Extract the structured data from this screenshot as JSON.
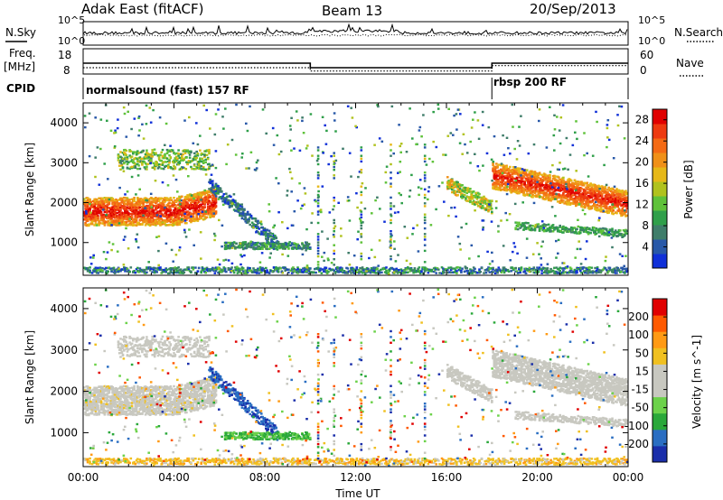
{
  "header": {
    "title_left": "Adak East (fitACF)",
    "title_center": "Beam 13",
    "title_right": "20/Sep/2013"
  },
  "labels": {
    "nsky": "N.Sky",
    "nsearch": "N.Search",
    "freq_line1": "Freq.",
    "freq_line2": "[MHz]",
    "nave": "Nave",
    "cpid": "CPID"
  },
  "cpid_programs": [
    {
      "name": "normalsound (fast) 157 RF",
      "start_ut": 0.0
    },
    {
      "name": "rbsp 200 RF",
      "start_ut": 18.0
    }
  ],
  "colors": {
    "power": [
      "#1030d8",
      "#2858a8",
      "#3f7d6a",
      "#2f9f4a",
      "#5fc23a",
      "#b0c21e",
      "#e6b818",
      "#f09018",
      "#f46a14",
      "#ee3a10",
      "#e00000"
    ],
    "velocity": [
      "#e00000",
      "#ff5a00",
      "#ff9a14",
      "#f0c020",
      "#c8c8c0",
      "#c8c8c0",
      "#6cd24a",
      "#2aa83a",
      "#2a6ec2",
      "#1a2eaa"
    ],
    "plot_frame": "#000000"
  },
  "chart_data": [
    {
      "type": "line",
      "title": "",
      "series": [
        {
          "name": "N.Sky"
        },
        {
          "name": "N.Search"
        }
      ],
      "ylim_log": [
        0,
        5
      ],
      "ytick_labels": [
        "10^0",
        "10^5"
      ],
      "right_tick_labels": [
        "10^0",
        "10^5"
      ]
    },
    {
      "type": "line",
      "series": [
        {
          "name": "Freq.",
          "x": [
            0,
            10,
            10,
            18,
            18,
            24
          ],
          "y": [
            12.3,
            12.3,
            10.5,
            10.5,
            12.3,
            12.3
          ]
        },
        {
          "name": "Nave",
          "x": [
            0,
            10,
            10,
            18,
            18,
            24
          ],
          "y": [
            15,
            15,
            7,
            7,
            20,
            20
          ]
        }
      ],
      "ylim_left": [
        8,
        18
      ],
      "ylim_right": [
        0,
        60
      ],
      "ytick_labels": [
        "8",
        "18"
      ],
      "right_tick_labels": [
        "0",
        "60"
      ]
    },
    {
      "type": "heatmap",
      "ylabel": "Slant Range [km]",
      "xlim": [
        "00:00",
        "24:00"
      ],
      "ylim": [
        180,
        4500
      ],
      "yticks": [
        "1000",
        "2000",
        "3000",
        "4000"
      ],
      "colorbar": {
        "label": "Power [dB]",
        "ticks": [
          "4",
          "8",
          "12",
          "16",
          "20",
          "24",
          "28"
        ],
        "range": [
          0,
          30
        ]
      }
    },
    {
      "type": "heatmap",
      "ylabel": "Slant Range [km]",
      "xlabel": "Time UT",
      "xticks": [
        "00:00",
        "04:00",
        "08:00",
        "12:00",
        "16:00",
        "20:00",
        "00:00"
      ],
      "ylim": [
        180,
        4500
      ],
      "yticks": [
        "1000",
        "2000",
        "3000",
        "4000"
      ],
      "colorbar": {
        "label": "Velocity [m s^-1]",
        "ticks": [
          "200",
          "100",
          "50",
          "15",
          "-15",
          "-50",
          "-100",
          "-200"
        ],
        "range": [
          -250,
          250
        ]
      }
    }
  ]
}
